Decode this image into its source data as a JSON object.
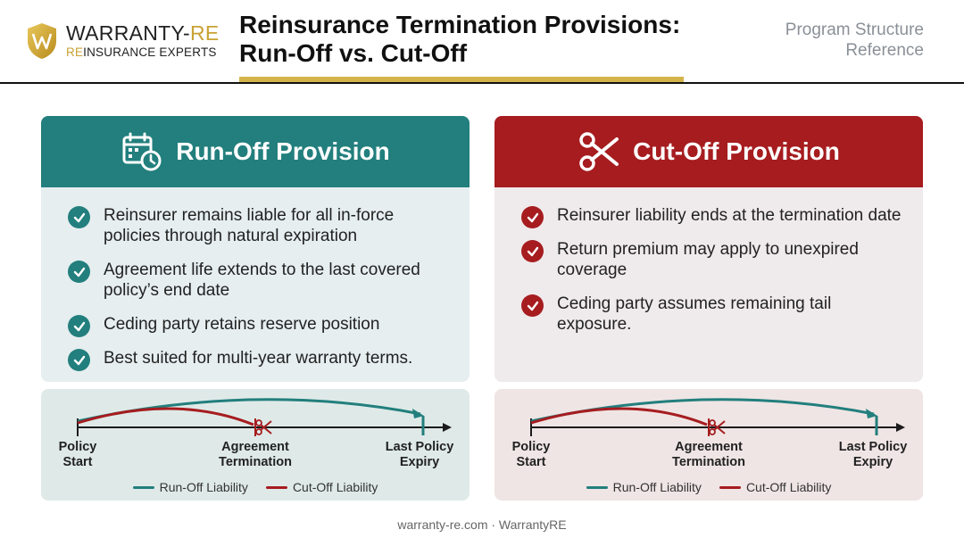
{
  "brand": {
    "name_main": "WARRANTY-",
    "name_accent": "RE",
    "sub_accent": "RE",
    "sub_main": "INSURANCE EXPERTS"
  },
  "header": {
    "title_line1": "Reinsurance Termination Provisions:",
    "title_line2": "Run-Off vs. Cut-Off",
    "ref_line1": "Program Structure",
    "ref_line2": "Reference"
  },
  "runoff": {
    "title": "Run-Off Provision",
    "icon": "calendar-clock-icon",
    "items": [
      "Reinsurer remains liable for all in-force policies through natural expiration",
      "Agreement life extends to the last covered policy’s end date",
      "Ceding party retains reserve position",
      "Best suited for multi-year warranty terms."
    ]
  },
  "cutoff": {
    "title": "Cut-Off Provision",
    "icon": "scissors-icon",
    "items": [
      "Reinsurer liability ends at the termination date",
      "Return premium may apply to unexpired coverage",
      "Ceding party assumes remaining tail exposure."
    ]
  },
  "timeline": {
    "start_l1": "Policy",
    "start_l2": "Start",
    "mid_l1": "Agreement",
    "mid_l2": "Termination",
    "end_l1": "Last Policy",
    "end_l2": "Expiry",
    "legend_runoff": "Run-Off Liability",
    "legend_cutoff": "Cut-Off Liability"
  },
  "colors": {
    "teal": "#227f7d",
    "red": "#a61c1f",
    "gold": "#d4b44a"
  },
  "footer": "warranty-re.com · WarrantyRE"
}
